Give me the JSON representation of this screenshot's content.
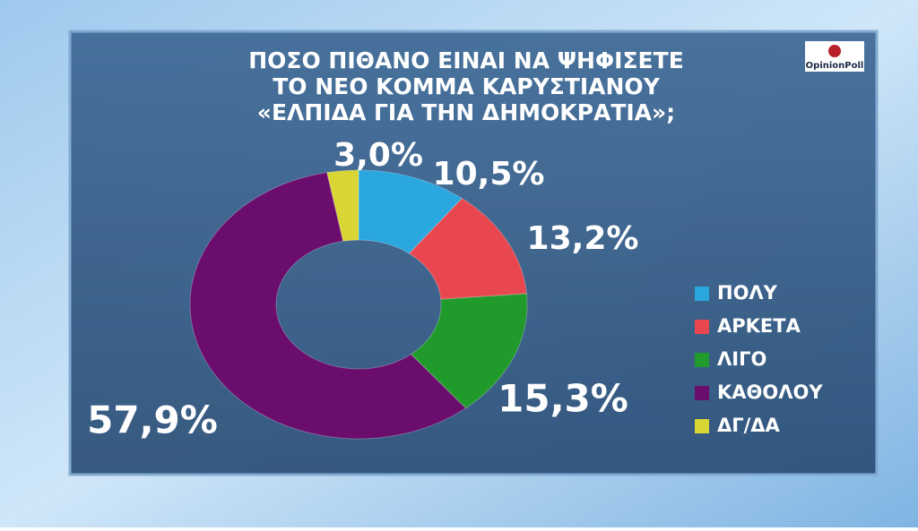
{
  "chart_data": {
    "type": "donut",
    "title": [
      "ΠΟΣΟ ΠΙΘΑΝΟ ΕΙΝΑΙ ΝΑ ΨΗΦΙΣΕΤΕ",
      "ΤΟ ΝΕΟ ΚΟΜΜΑ ΚΑΡΥΣΤΙΑΝΟΥ",
      "«ΕΛΠΙΔΑ ΓΙΑ ΤΗΝ ΔΗΜΟΚΡΑΤΙΑ»;"
    ],
    "source_logo": "OpinionPoll",
    "categories": [
      "ΠΟΛΥ",
      "ΑΡΚΕΤΑ",
      "ΛΙΓΟ",
      "ΚΑΘΟΛΟΥ",
      "ΔΓ/ΔΑ"
    ],
    "values": [
      10.5,
      13.2,
      15.3,
      57.9,
      3.0
    ],
    "value_labels": [
      "10,5%",
      "13,2%",
      "15,3%",
      "57,9%",
      "3,0%"
    ],
    "colors": [
      "#2aa7df",
      "#e9474f",
      "#1f9a2b",
      "#6a0d6c",
      "#d9d534"
    ],
    "legend": "right"
  }
}
